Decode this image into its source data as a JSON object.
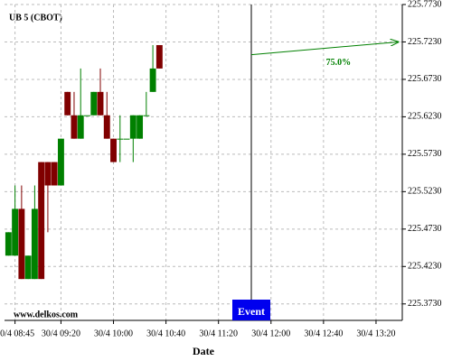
{
  "chart_data": {
    "type": "candlestick",
    "title": "UB 5 (CBOT)",
    "watermark": "www.delkos.com",
    "x_label": "Date",
    "x": [
      "30/4 08:40",
      "30/4 08:45",
      "30/4 08:50",
      "30/4 08:55",
      "30/4 09:00",
      "30/4 09:05",
      "30/4 09:10",
      "30/4 09:15",
      "30/4 09:20",
      "30/4 09:25",
      "30/4 09:30",
      "30/4 09:35",
      "30/4 09:40",
      "30/4 09:45",
      "30/4 09:50",
      "30/4 09:55",
      "30/4 10:00",
      "30/4 10:05",
      "30/4 10:10",
      "30/4 10:15",
      "30/4 10:20",
      "30/4 10:25",
      "30/4 10:30",
      "30/4 10:35"
    ],
    "open": [
      225.4375,
      225.4375,
      225.5,
      225.40625,
      225.40625,
      225.5625,
      225.5625,
      225.5625,
      225.53125,
      225.65625,
      225.625,
      225.59375,
      225.625,
      225.625,
      225.65625,
      225.625,
      225.59375,
      225.59375,
      225.59375,
      225.59375,
      225.59375,
      225.625,
      225.65625,
      225.71875
    ],
    "high": [
      225.46875,
      225.53125,
      225.53125,
      225.4375,
      225.53125,
      225.5625,
      225.5625,
      225.5625,
      225.59375,
      225.65625,
      225.65625,
      225.6875,
      225.625,
      225.65625,
      225.6875,
      225.65625,
      225.59375,
      225.625,
      225.59375,
      225.625,
      225.625,
      225.65625,
      225.71875,
      225.71875
    ],
    "low": [
      225.4375,
      225.4375,
      225.40625,
      225.40625,
      225.40625,
      225.40625,
      225.46875,
      225.53125,
      225.53125,
      225.625,
      225.59375,
      225.59375,
      225.625,
      225.625,
      225.625,
      225.59375,
      225.5625,
      225.5625,
      225.59375,
      225.5625,
      225.59375,
      225.625,
      225.65625,
      225.6875
    ],
    "close": [
      225.46875,
      225.5,
      225.40625,
      225.4375,
      225.5,
      225.40625,
      225.53125,
      225.53125,
      225.59375,
      225.625,
      225.59375,
      225.625,
      225.625,
      225.65625,
      225.625,
      225.59375,
      225.5625,
      225.59375,
      225.59375,
      225.625,
      225.625,
      225.625,
      225.6875,
      225.6875
    ],
    "up_color": "#008000",
    "down_color": "#800000",
    "xlim": [
      "30/4 08:37",
      "30/4 13:40"
    ],
    "xticks": [
      "30/4 08:45",
      "30/4 09:20",
      "30/4 10:00",
      "30/4 10:40",
      "30/4 11:20",
      "30/4 12:00",
      "30/4 12:40",
      "30/4 13:20"
    ],
    "ylim": [
      225.351,
      225.773
    ],
    "yticks": [
      {
        "value": 225.373,
        "label": "225.3730"
      },
      {
        "value": 225.423,
        "label": "225.4230"
      },
      {
        "value": 225.473,
        "label": "225.4730"
      },
      {
        "value": 225.523,
        "label": "225.5230"
      },
      {
        "value": 225.573,
        "label": "225.5730"
      },
      {
        "value": 225.623,
        "label": "225.6230"
      },
      {
        "value": 225.673,
        "label": "225.6730"
      },
      {
        "value": 225.723,
        "label": "225.7230"
      },
      {
        "value": 225.773,
        "label": "225.7730"
      }
    ],
    "grid": true,
    "event": {
      "x": "30/4 11:45",
      "label": "Event",
      "color": "#0000ee"
    },
    "arrow": {
      "label": "75.0%",
      "x": [
        "30/4 11:45",
        "30/4 13:37"
      ],
      "y": [
        225.706,
        225.723
      ],
      "color": "#008000"
    }
  }
}
